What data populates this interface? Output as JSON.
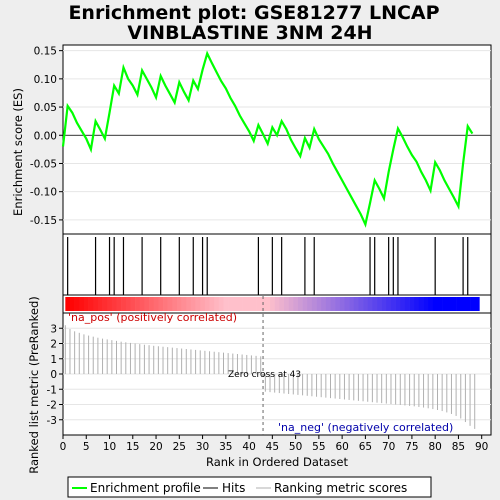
{
  "title_line1": "Enrichment plot: GSE81277 LNCAP",
  "title_line2": "VINBLASTINE 3NM 24H",
  "chart_data": {
    "type": "line",
    "x_range": [
      0,
      92
    ],
    "x_ticks": [
      "0",
      "5",
      "10",
      "15",
      "20",
      "25",
      "30",
      "35",
      "40",
      "45",
      "50",
      "55",
      "60",
      "65",
      "70",
      "75",
      "80",
      "85",
      "90"
    ],
    "xlabel": "Rank in Ordered Dataset",
    "es_panel": {
      "ylabel": "Enrichment score (ES)",
      "ylim": [
        -0.175,
        0.16
      ],
      "y_ticks": [
        "0.15",
        "0.10",
        "0.05",
        "0.00",
        "-0.05",
        "-0.10",
        "-0.15"
      ],
      "y_tick_values": [
        0.15,
        0.1,
        0.05,
        0.0,
        -0.05,
        -0.1,
        -0.15
      ],
      "series": [
        {
          "name": "Enrichment profile",
          "color": "#00ff00",
          "x": [
            0,
            1,
            2,
            3,
            4,
            5,
            6,
            7,
            8,
            9,
            10,
            11,
            12,
            13,
            14,
            15,
            16,
            17,
            18,
            19,
            20,
            21,
            22,
            23,
            24,
            25,
            26,
            27,
            28,
            29,
            30,
            31,
            32,
            33,
            34,
            35,
            36,
            37,
            38,
            39,
            40,
            41,
            42,
            43,
            44,
            45,
            46,
            47,
            48,
            49,
            50,
            51,
            52,
            53,
            54,
            55,
            56,
            57,
            58,
            59,
            60,
            61,
            62,
            63,
            64,
            65,
            66,
            67,
            68,
            69,
            70,
            71,
            72,
            73,
            74,
            75,
            76,
            77,
            78,
            79,
            80,
            81,
            82,
            83,
            84,
            85,
            86,
            87,
            88
          ],
          "y": [
            -0.02,
            0.052,
            0.04,
            0.022,
            0.008,
            -0.006,
            -0.025,
            0.025,
            0.01,
            -0.006,
            0.04,
            0.088,
            0.074,
            0.12,
            0.1,
            0.088,
            0.072,
            0.115,
            0.1,
            0.085,
            0.067,
            0.105,
            0.088,
            0.073,
            0.058,
            0.094,
            0.077,
            0.062,
            0.097,
            0.082,
            0.116,
            0.145,
            0.128,
            0.112,
            0.096,
            0.083,
            0.066,
            0.052,
            0.035,
            0.021,
            0.007,
            -0.01,
            0.018,
            0.002,
            -0.015,
            0.014,
            0.0,
            0.025,
            0.011,
            -0.008,
            -0.023,
            -0.037,
            -0.005,
            -0.022,
            0.011,
            -0.007,
            -0.02,
            -0.033,
            -0.05,
            -0.065,
            -0.08,
            -0.095,
            -0.11,
            -0.125,
            -0.14,
            -0.158,
            -0.12,
            -0.08,
            -0.095,
            -0.112,
            -0.065,
            -0.025,
            0.012,
            -0.003,
            -0.02,
            -0.035,
            -0.047,
            -0.065,
            -0.08,
            -0.098,
            -0.048,
            -0.062,
            -0.08,
            -0.095,
            -0.11,
            -0.126,
            -0.05,
            0.016,
            0.003
          ]
        }
      ]
    },
    "hits": [
      1,
      7,
      10,
      11,
      13,
      17,
      21,
      25,
      28,
      30,
      31,
      42,
      45,
      47,
      52,
      54,
      66,
      67,
      70,
      71,
      72,
      80,
      86,
      87
    ],
    "hit_color": "#000000",
    "heatmap": {
      "positive_color": "#ff0000",
      "mid_color": "#ffc0cb",
      "negative_color": "#0000ff"
    },
    "metric_panel": {
      "ylabel": "Ranked list metric (PreRanked)",
      "ylim": [
        -4,
        4
      ],
      "y_ticks": [
        "3",
        "2",
        "1",
        "0",
        "-1",
        "-2",
        "-3"
      ],
      "y_tick_values": [
        3,
        2,
        1,
        0,
        -1,
        -2,
        -3
      ],
      "bar_color": "#b0b0b0",
      "values": [
        3.2,
        2.95,
        2.8,
        2.7,
        2.6,
        2.52,
        2.45,
        2.38,
        2.32,
        2.27,
        2.22,
        2.17,
        2.12,
        2.08,
        2.04,
        2.0,
        1.96,
        1.92,
        1.89,
        1.85,
        1.82,
        1.79,
        1.76,
        1.73,
        1.7,
        1.67,
        1.64,
        1.61,
        1.58,
        1.55,
        1.52,
        1.49,
        1.46,
        1.43,
        1.4,
        1.37,
        1.34,
        1.31,
        1.28,
        1.25,
        1.22,
        1.19,
        1.16,
        -1.16,
        -1.19,
        -1.22,
        -1.25,
        -1.28,
        -1.31,
        -1.34,
        -1.37,
        -1.4,
        -1.43,
        -1.46,
        -1.49,
        -1.52,
        -1.55,
        -1.58,
        -1.61,
        -1.64,
        -1.67,
        -1.7,
        -1.73,
        -1.76,
        -1.79,
        -1.82,
        -1.85,
        -1.88,
        -1.91,
        -1.94,
        -1.97,
        -2.0,
        -2.03,
        -2.06,
        -2.09,
        -2.12,
        -2.16,
        -2.2,
        -2.25,
        -2.3,
        -2.36,
        -2.43,
        -2.52,
        -2.62,
        -2.75,
        -2.92,
        -3.15,
        -3.4,
        -3.6
      ],
      "zero_cross_label": "Zero cross at 43",
      "zero_cross_x": 43,
      "pos_label": "'na_pos' (positively correlated)",
      "neg_label": "'na_neg' (negatively correlated)",
      "pos_label_color": "#cc0000",
      "neg_label_color": "#0000aa"
    },
    "legend": {
      "placement": "bottom",
      "items": [
        "Enrichment profile",
        "Hits",
        "Ranking metric scores"
      ]
    }
  }
}
